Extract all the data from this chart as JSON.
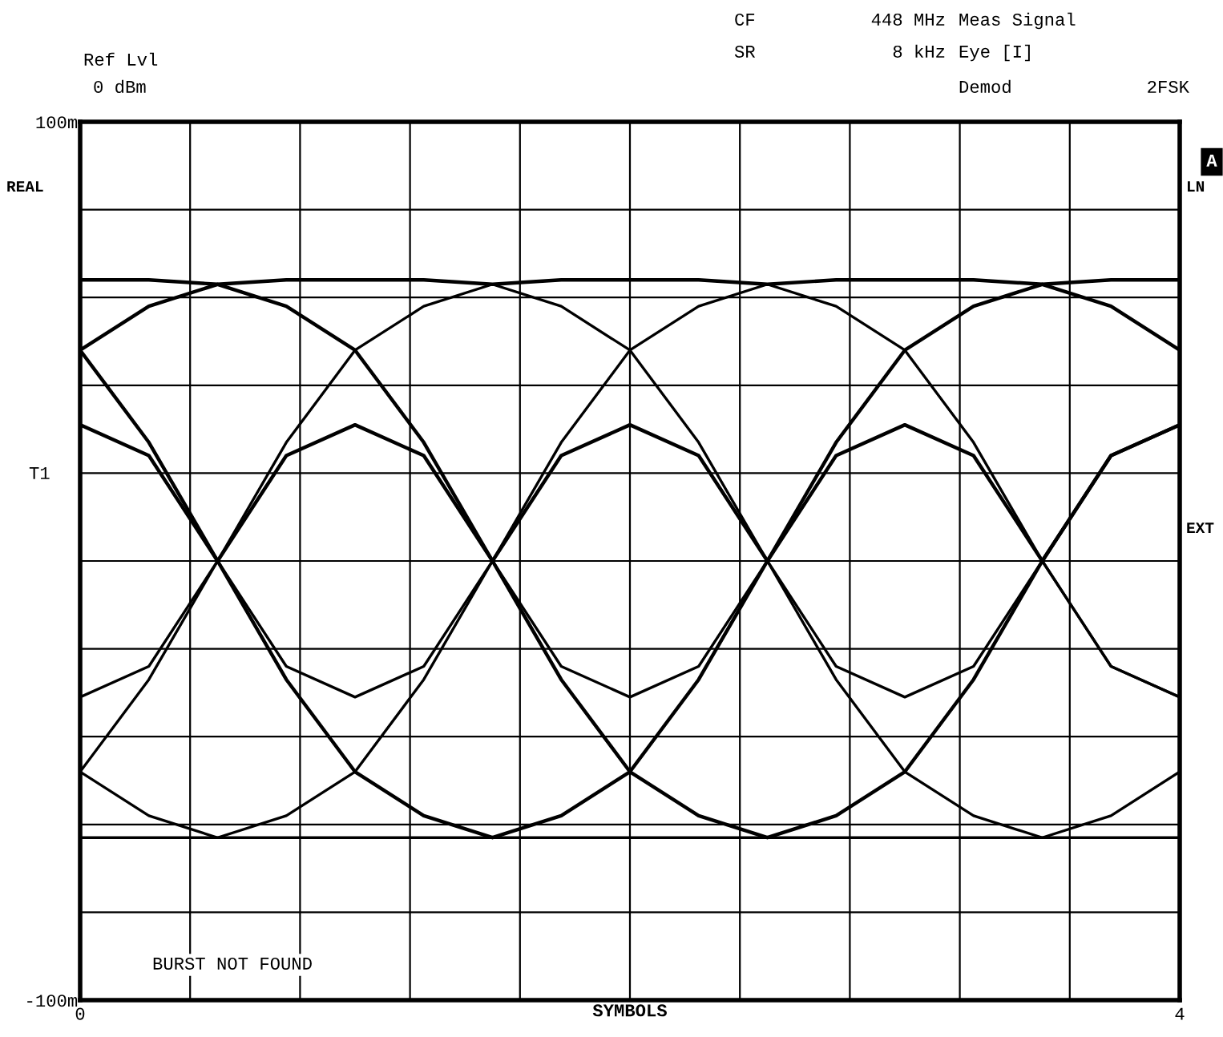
{
  "chart_data": {
    "type": "line",
    "xlabel": "SYMBOLS",
    "x": [
      0,
      0.25,
      0.5,
      0.75,
      1,
      1.25,
      1.5,
      1.75,
      2,
      2.25,
      2.5,
      2.75,
      3,
      3.25,
      3.5,
      3.75,
      4
    ],
    "series": [
      {
        "color": "#000000",
        "values": [
          64,
          64,
          63,
          64,
          64,
          64,
          63,
          64,
          64,
          64,
          63,
          64,
          64,
          64,
          63,
          64,
          64
        ]
      },
      {
        "color": "#000000",
        "values": [
          -63,
          -63,
          -63,
          -63,
          -63,
          -63,
          -63,
          -63,
          -63,
          -63,
          -63,
          -63,
          -63,
          -63,
          -63,
          -63,
          -63
        ]
      },
      {
        "color": "#000000",
        "values": [
          48,
          27,
          0,
          -27,
          -48,
          -58,
          -63,
          -58,
          -48,
          -27,
          0,
          27,
          48,
          58,
          63,
          58,
          48
        ]
      },
      {
        "color": "#000000",
        "values": [
          -48,
          -27,
          0,
          27,
          48,
          58,
          63,
          58,
          48,
          27,
          0,
          -27,
          -48,
          -58,
          -63,
          -58,
          -48
        ]
      },
      {
        "color": "#000000",
        "values": [
          48,
          58,
          63,
          58,
          48,
          27,
          0,
          -27,
          -48,
          -58,
          -63,
          -58,
          -48,
          -27,
          0,
          24,
          31
        ]
      },
      {
        "color": "#000000",
        "values": [
          -48,
          -58,
          -63,
          -58,
          -48,
          -27,
          0,
          27,
          48,
          58,
          63,
          58,
          48,
          27,
          0,
          -24,
          -31
        ]
      },
      {
        "color": "#000000",
        "values": [
          31,
          24,
          0,
          24,
          31,
          24,
          0,
          24,
          31,
          24,
          0,
          24,
          31,
          24,
          0,
          24,
          31
        ]
      },
      {
        "color": "#000000",
        "values": [
          -31,
          -24,
          0,
          -24,
          -31,
          -24,
          0,
          -24,
          -31,
          -24,
          0,
          -24,
          -31,
          -24,
          0,
          -24,
          -31
        ]
      }
    ],
    "xlim": [
      0,
      4
    ],
    "xticks": [
      0,
      {
        "value": 0.4,
        "label": null
      },
      {
        "value": 0.8,
        "label": null
      },
      {
        "value": 1.2,
        "label": null
      },
      {
        "value": 1.6,
        "label": null
      },
      {
        "value": 2.0,
        "label": null
      },
      {
        "value": 2.4,
        "label": null
      },
      {
        "value": 2.8,
        "label": null
      },
      {
        "value": 3.2,
        "label": null
      },
      {
        "value": 3.6,
        "label": null
      },
      4
    ],
    "ylim": [
      -100,
      100
    ],
    "yticks": [
      {
        "value": -100,
        "label": "-100m"
      },
      {
        "value": -80,
        "label": null
      },
      {
        "value": -60,
        "label": null
      },
      {
        "value": -40,
        "label": null
      },
      {
        "value": -20,
        "label": null
      },
      {
        "value": 0,
        "label": null
      },
      {
        "value": 20,
        "label": null
      },
      {
        "value": 40,
        "label": null
      },
      {
        "value": 60,
        "label": null
      },
      {
        "value": 80,
        "label": null
      },
      {
        "value": 100,
        "label": "100m"
      }
    ],
    "grid": true,
    "marker": "none",
    "line_style": "solid",
    "annotations": [
      "Ref Lvl",
      "0 dBm",
      "CF",
      "448 MHz",
      "Meas Signal",
      "SR",
      "8 kHz",
      "Eye [I]",
      "Demod",
      "2FSK",
      "REAL",
      "T1",
      "A",
      "LN",
      "EXT",
      "BURST NOT FOUND"
    ]
  }
}
